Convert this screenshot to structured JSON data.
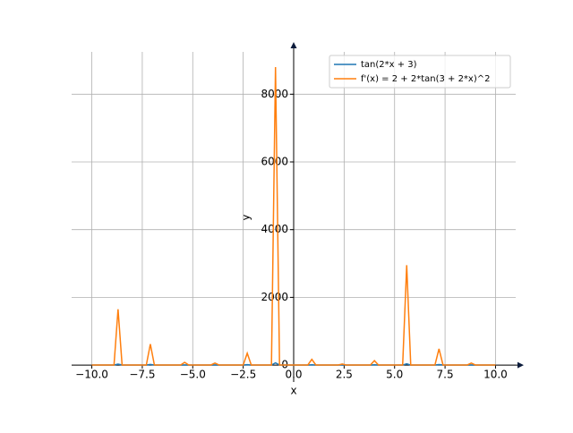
{
  "chart_data": {
    "type": "line",
    "x_label": "x",
    "y_label": "y",
    "x": [
      -10,
      -8.9,
      -8.7,
      -8.5,
      -7.3,
      -7.1,
      -6.9,
      -5.6,
      -5.4,
      -5.2,
      -4.1,
      -3.9,
      -3.7,
      -2.5,
      -2.3,
      -2.1,
      -1.1,
      -0.9,
      -0.7,
      0.7,
      0.9,
      1.1,
      2.2,
      2.4,
      2.6,
      3.8,
      4.0,
      4.2,
      5.4,
      5.6,
      5.8,
      7.0,
      7.2,
      7.4,
      8.6,
      8.8,
      9.0,
      10
    ],
    "series": [
      {
        "name": "tan(2*x + 3)",
        "color": "#1f77b4",
        "values": [
          1,
          1,
          29,
          1,
          1,
          18,
          1,
          1,
          6,
          1,
          1,
          5,
          1,
          1,
          13,
          1,
          1,
          66,
          1,
          1,
          9,
          1,
          1,
          4,
          1,
          1,
          8,
          1,
          1,
          38,
          1,
          1,
          15,
          1,
          1,
          5,
          1,
          1
        ]
      },
      {
        "name": "f'(x) = 2 + 2*tan(3 + 2*x)^2",
        "color": "#ff7f0e",
        "values": [
          3,
          3,
          1650,
          3,
          3,
          620,
          3,
          3,
          80,
          3,
          3,
          60,
          3,
          3,
          350,
          3,
          3,
          8800,
          3,
          3,
          170,
          3,
          3,
          30,
          3,
          3,
          130,
          3,
          3,
          2950,
          3,
          3,
          480,
          3,
          3,
          60,
          3,
          3
        ]
      }
    ],
    "xlim": [
      -11,
      11
    ],
    "ylim": [
      -500,
      9250
    ],
    "xticks": [
      {
        "value": -10,
        "label": "−10.0"
      },
      {
        "value": -7.5,
        "label": "−7.5"
      },
      {
        "value": -5,
        "label": "−5.0"
      },
      {
        "value": -2.5,
        "label": "−2.5"
      },
      {
        "value": 0,
        "label": "0.0"
      },
      2.5,
      {
        "value": 5,
        "label": "5.0"
      },
      7.5,
      {
        "value": 10,
        "label": "10.0"
      }
    ],
    "yticks": [
      0,
      2000,
      4000,
      6000,
      8000
    ],
    "grid": true,
    "legend": "upper right"
  }
}
